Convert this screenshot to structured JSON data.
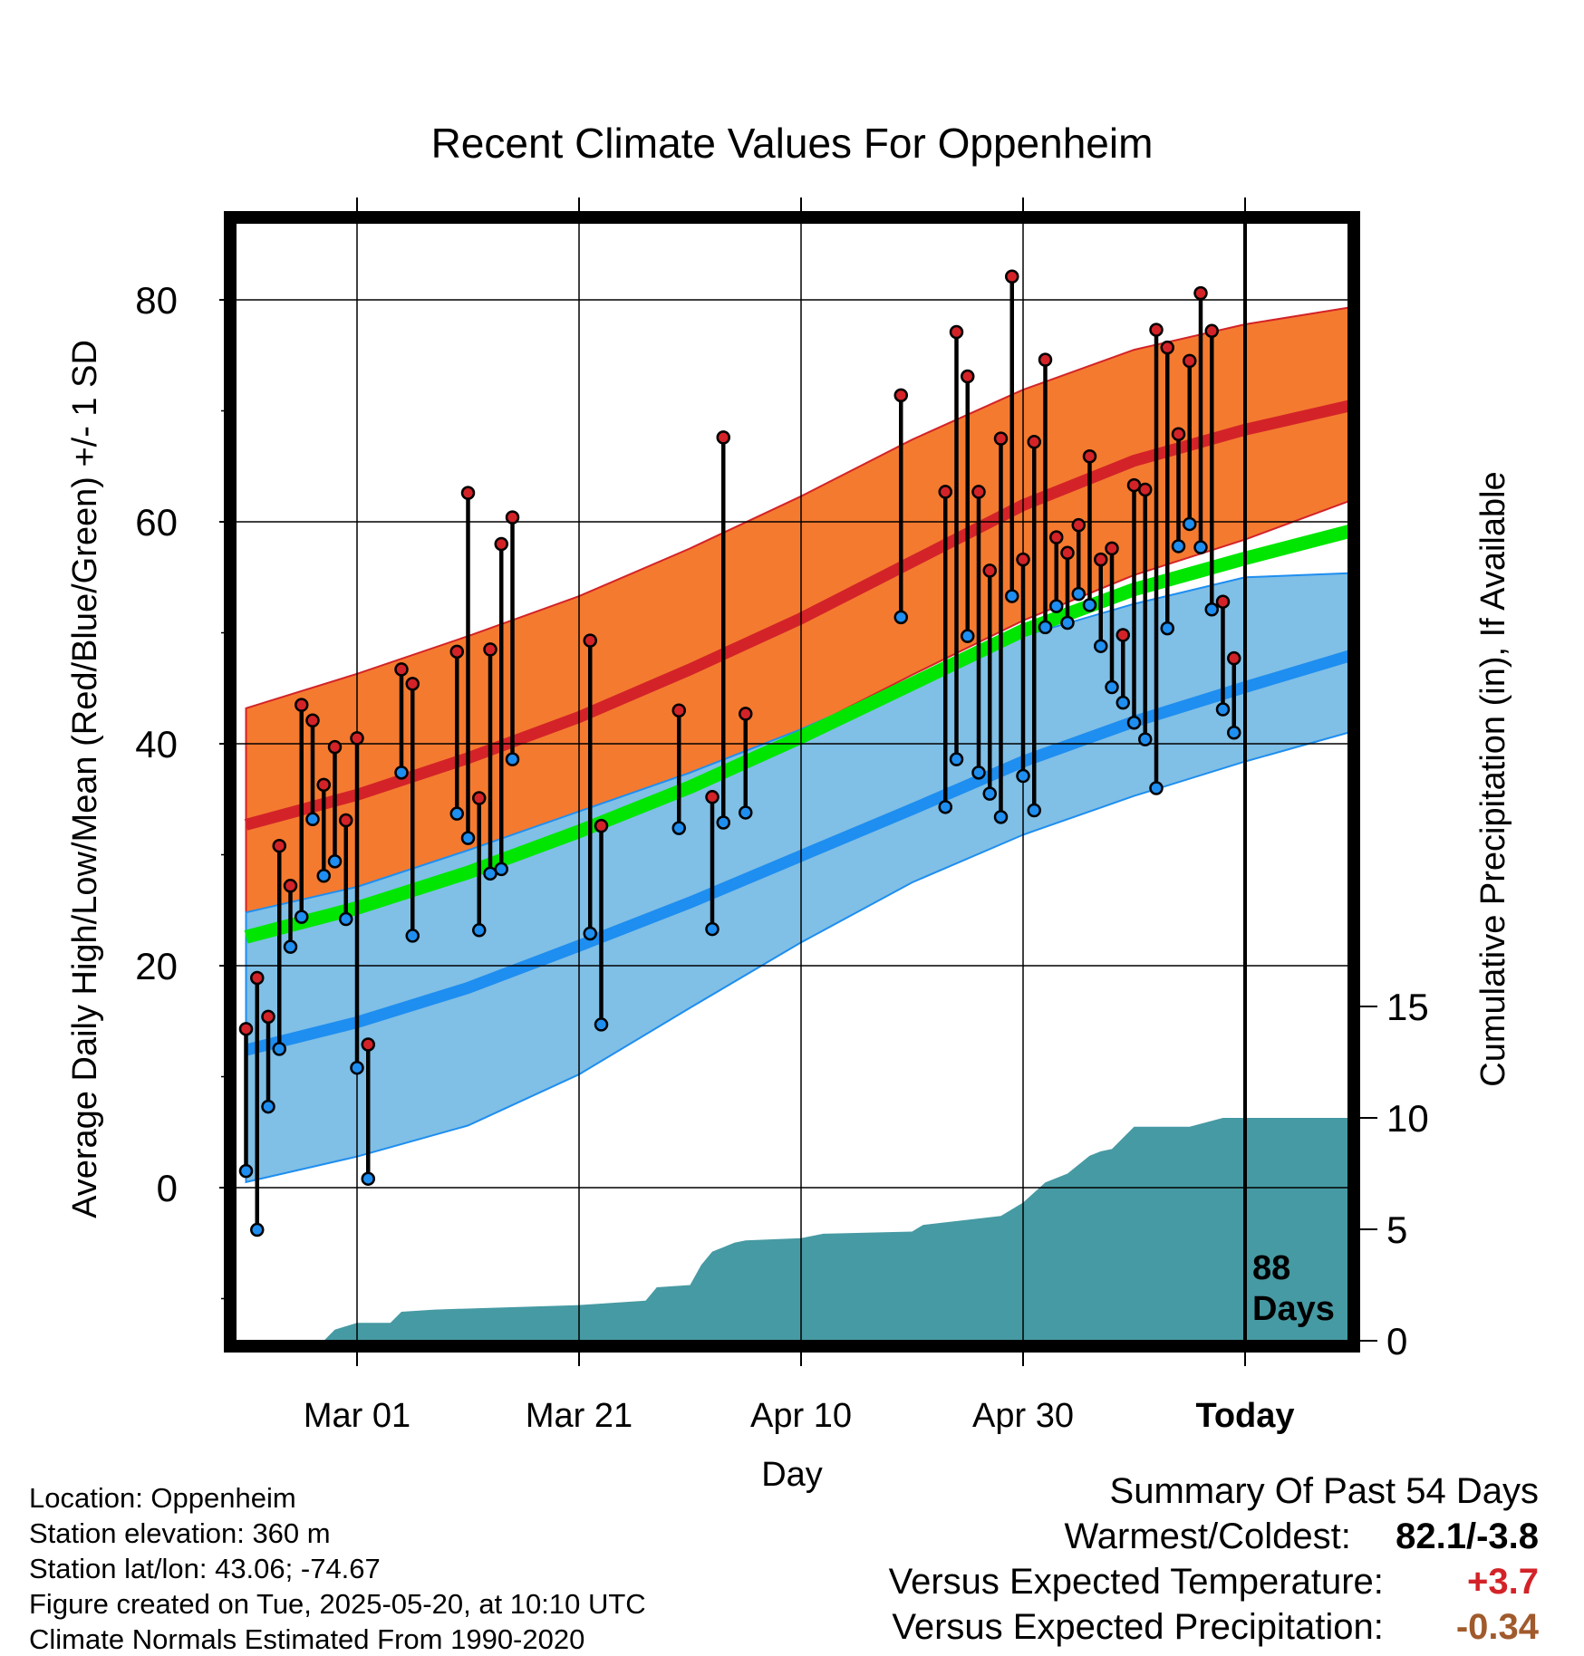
{
  "chart_data": {
    "type": "line",
    "title": "Recent Climate Values For Oppenheim",
    "xlabel": "Day",
    "ylabel": "Average Daily High/Low/Mean (Red/Blue/Green) +/- 1 SD",
    "y2label": "Cumulative Precipitation (in), If Available",
    "x_tick_labels": [
      "Mar 01",
      "Mar 21",
      "Apr 10",
      "Apr 30",
      "Today"
    ],
    "x_tick_days": [
      0,
      20,
      40,
      60,
      80
    ],
    "x_range": [
      -10,
      90
    ],
    "y_ticks": [
      0,
      20,
      40,
      60,
      80
    ],
    "ylim": [
      -13,
      87
    ],
    "y2_ticks": [
      0,
      5,
      10,
      15
    ],
    "y2lim": [
      0,
      47.6
    ],
    "today_marker": {
      "day": 80,
      "label_line1": "88",
      "label_line2": "Days"
    },
    "normals": {
      "days": [
        -10,
        0,
        10,
        20,
        30,
        40,
        50,
        60,
        70,
        80,
        90
      ],
      "high_mean": [
        32.7,
        35.4,
        38.7,
        42.4,
        46.7,
        51.3,
        56.4,
        61.5,
        65.5,
        68.3,
        70.6
      ],
      "high_sd_upper": [
        43.2,
        46.3,
        49.7,
        53.3,
        57.6,
        62.3,
        67.4,
        71.9,
        75.5,
        77.8,
        79.4
      ],
      "high_sd_lower": [
        23.8,
        26.2,
        29.2,
        32.6,
        36.6,
        41.1,
        46.2,
        51.1,
        55.2,
        58.4,
        62.1
      ],
      "mean": [
        22.6,
        25.2,
        28.4,
        32.1,
        36.1,
        40.6,
        45.4,
        50.2,
        53.9,
        56.7,
        59.3
      ],
      "low_mean": [
        12.4,
        14.9,
        18.0,
        21.8,
        25.7,
        29.9,
        34.1,
        38.4,
        42.0,
        45.1,
        48.1
      ],
      "low_sd_upper": [
        24.8,
        27.1,
        30.4,
        33.9,
        37.4,
        41.3,
        45.7,
        49.7,
        52.6,
        55.0,
        55.4
      ],
      "low_sd_lower": [
        0.5,
        2.8,
        5.6,
        10.2,
        16.2,
        22.1,
        27.5,
        31.8,
        35.3,
        38.4,
        41.2
      ]
    },
    "observations": [
      {
        "day": -10,
        "high": 14.3,
        "low": 1.5
      },
      {
        "day": -9,
        "high": 18.9,
        "low": -3.8
      },
      {
        "day": -8,
        "high": 15.4,
        "low": 7.3
      },
      {
        "day": -7,
        "high": 30.8,
        "low": 12.5
      },
      {
        "day": -6,
        "high": 27.2,
        "low": 21.7
      },
      {
        "day": -5,
        "high": 43.5,
        "low": 24.4
      },
      {
        "day": -4,
        "high": 42.1,
        "low": 33.2
      },
      {
        "day": -3,
        "high": 36.3,
        "low": 28.1
      },
      {
        "day": -2,
        "high": 39.7,
        "low": 29.4
      },
      {
        "day": -1,
        "high": 33.1,
        "low": 24.2
      },
      {
        "day": 0,
        "high": 40.5,
        "low": 10.8
      },
      {
        "day": 1,
        "high": 12.9,
        "low": 0.8
      },
      {
        "day": 4,
        "high": 46.7,
        "low": 37.4
      },
      {
        "day": 5,
        "high": 45.4,
        "low": 22.7
      },
      {
        "day": 9,
        "high": 48.3,
        "low": 33.7
      },
      {
        "day": 10,
        "high": 62.6,
        "low": 31.5
      },
      {
        "day": 11,
        "high": 35.1,
        "low": 23.2
      },
      {
        "day": 12,
        "high": 48.5,
        "low": 28.3
      },
      {
        "day": 13,
        "high": 58.0,
        "low": 28.7
      },
      {
        "day": 14,
        "high": 60.4,
        "low": 38.6
      },
      {
        "day": 21,
        "high": 49.3,
        "low": 22.9
      },
      {
        "day": 22,
        "high": 32.6,
        "low": 14.7
      },
      {
        "day": 29,
        "high": 43.0,
        "low": 32.4
      },
      {
        "day": 32,
        "high": 35.2,
        "low": 23.3
      },
      {
        "day": 33,
        "high": 67.6,
        "low": 32.9
      },
      {
        "day": 35,
        "high": 42.7,
        "low": 33.8
      },
      {
        "day": 49,
        "high": 71.4,
        "low": 51.4
      },
      {
        "day": 53,
        "high": 62.7,
        "low": 34.3
      },
      {
        "day": 54,
        "high": 77.1,
        "low": 38.6
      },
      {
        "day": 55,
        "high": 73.1,
        "low": 49.7
      },
      {
        "day": 56,
        "high": 62.7,
        "low": 37.4
      },
      {
        "day": 57,
        "high": 55.6,
        "low": 35.5
      },
      {
        "day": 58,
        "high": 67.5,
        "low": 33.4
      },
      {
        "day": 59,
        "high": 82.1,
        "low": 53.3
      },
      {
        "day": 60,
        "high": 56.6,
        "low": 37.1
      },
      {
        "day": 61,
        "high": 67.2,
        "low": 34.0
      },
      {
        "day": 62,
        "high": 74.6,
        "low": 50.5
      },
      {
        "day": 63,
        "high": 58.6,
        "low": 52.4
      },
      {
        "day": 64,
        "high": 57.2,
        "low": 50.9
      },
      {
        "day": 65,
        "high": 59.7,
        "low": 53.5
      },
      {
        "day": 66,
        "high": 65.9,
        "low": 52.5
      },
      {
        "day": 67,
        "high": 56.6,
        "low": 48.8
      },
      {
        "day": 68,
        "high": 57.6,
        "low": 45.1
      },
      {
        "day": 69,
        "high": 49.8,
        "low": 43.7
      },
      {
        "day": 70,
        "high": 63.3,
        "low": 41.9
      },
      {
        "day": 71,
        "high": 62.9,
        "low": 40.4
      },
      {
        "day": 72,
        "high": 77.3,
        "low": 36.0
      },
      {
        "day": 73,
        "high": 75.7,
        "low": 50.4
      },
      {
        "day": 74,
        "high": 67.9,
        "low": 57.8
      },
      {
        "day": 75,
        "high": 74.5,
        "low": 59.8
      },
      {
        "day": 76,
        "high": 80.6,
        "low": 57.7
      },
      {
        "day": 77,
        "high": 77.2,
        "low": 52.1
      },
      {
        "day": 78,
        "high": 52.8,
        "low": 43.1
      },
      {
        "day": 79,
        "high": 47.7,
        "low": 41.0
      }
    ],
    "precipitation": {
      "days": [
        -10,
        -3,
        -2,
        0,
        1,
        3,
        4,
        7,
        20,
        26,
        27,
        30,
        31,
        32,
        33,
        34,
        35,
        40,
        42,
        50,
        51,
        58,
        60,
        62,
        64,
        66,
        67,
        68,
        70,
        75,
        78,
        90
      ],
      "cumulative": [
        0.0,
        0.0,
        0.5,
        0.8,
        0.8,
        0.8,
        1.3,
        1.4,
        1.6,
        1.8,
        2.4,
        2.5,
        3.4,
        4.0,
        4.2,
        4.4,
        4.5,
        4.6,
        4.8,
        4.9,
        5.2,
        5.6,
        6.2,
        7.1,
        7.5,
        8.3,
        8.5,
        8.6,
        9.6,
        9.6,
        10.0,
        10.0
      ]
    }
  },
  "info": {
    "location": "Location: Oppenheim",
    "elevation": "Station elevation: 360 m",
    "latlon": "Station lat/lon: 43.06; -74.67",
    "created": "Figure created on Tue, 2025-05-20, at 10:10 UTC",
    "normals": "Climate Normals Estimated From 1990-2020"
  },
  "summary": {
    "title": "Summary Of Past 54 Days",
    "warm_label": "Warmest/Coldest:",
    "warm_value": "82.1/-3.8",
    "temp_label": "Versus Expected Temperature:",
    "temp_value": "+3.7",
    "precip_label": "Versus Expected Precipitation:",
    "precip_value": "-0.34"
  },
  "colors": {
    "high_band": "#f47a30",
    "high_line": "#d32328",
    "low_band": "#80bfe6",
    "low_line": "#1e8ef0",
    "mean_line": "#00e600",
    "precip_fill": "#469aa3",
    "high_dot": "#d32328",
    "low_dot": "#1e8ef0",
    "temp_anomaly": "#d32328",
    "precip_anomaly": "#a05a2c"
  }
}
